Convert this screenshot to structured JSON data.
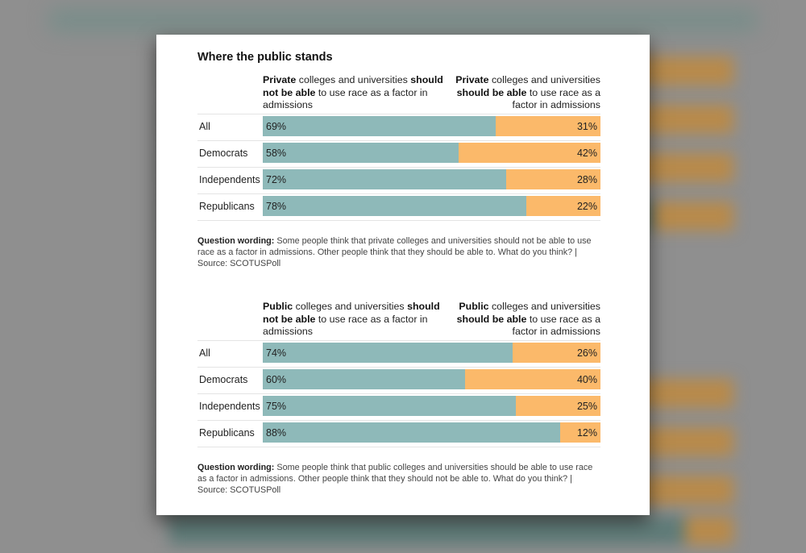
{
  "title": "Where the public stands",
  "colors": {
    "not_able": "#8eb9b9",
    "able": "#fbb96a"
  },
  "chart_data": [
    {
      "type": "bar",
      "orientation": "horizontal-stacked-100",
      "header_left": {
        "bold1": "Private",
        "rest1": " colleges and universities ",
        "bold2": "should not be able",
        "rest2": " to use race as a factor in admissions"
      },
      "header_right": {
        "bold1": "Private",
        "rest1": " colleges and universities ",
        "bold2": "should be able",
        "rest2": " to use race as a factor in admissions"
      },
      "categories": [
        "All",
        "Democrats",
        "Independents",
        "Republicans"
      ],
      "series": [
        {
          "name": "Private colleges and universities should not be able to use race as a factor in admissions",
          "values": [
            69,
            58,
            72,
            78
          ],
          "labels": [
            "69%",
            "58%",
            "72%",
            "78%"
          ]
        },
        {
          "name": "Private colleges and universities should be able to use race as a factor in admissions",
          "values": [
            31,
            42,
            28,
            22
          ],
          "labels": [
            "31%",
            "42%",
            "28%",
            "22%"
          ]
        }
      ],
      "note": {
        "label": "Question wording:",
        "text": " Some people think that private colleges and universities should not be able to use race as a factor in admissions. Other people think that they should be able to. What do you think? | Source: SCOTUSPoll"
      }
    },
    {
      "type": "bar",
      "orientation": "horizontal-stacked-100",
      "header_left": {
        "bold1": "Public",
        "rest1": " colleges and universities ",
        "bold2": "should not be able",
        "rest2": " to use race as a factor in admissions"
      },
      "header_right": {
        "bold1": "Public",
        "rest1": " colleges and universities ",
        "bold2": "should be able",
        "rest2": " to use race as a factor in admissions"
      },
      "categories": [
        "All",
        "Democrats",
        "Independents",
        "Republicans"
      ],
      "series": [
        {
          "name": "Public colleges and universities should not be able to use race as a factor in admissions",
          "values": [
            74,
            60,
            75,
            88
          ],
          "labels": [
            "74%",
            "60%",
            "75%",
            "88%"
          ]
        },
        {
          "name": "Public colleges and universities should be able to use race as a factor in admissions",
          "values": [
            26,
            40,
            25,
            12
          ],
          "labels": [
            "26%",
            "40%",
            "25%",
            "12%"
          ]
        }
      ],
      "note": {
        "label": "Question wording:",
        "text": " Some people think that public colleges and universities should be able to use race as a factor in admissions. Other people think that they should not be able to. What do you think? | Source: SCOTUSPoll"
      }
    }
  ]
}
